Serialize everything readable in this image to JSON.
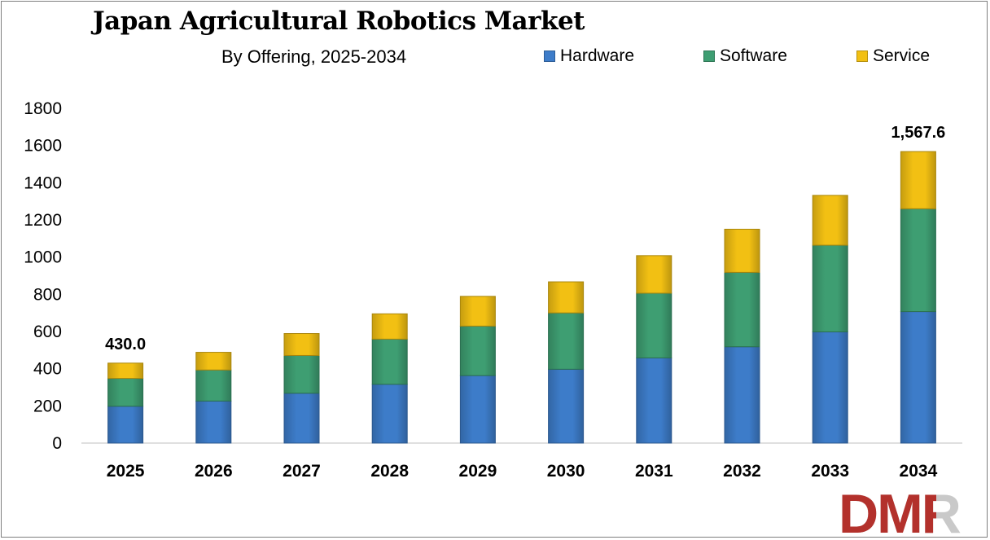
{
  "title": "Japan Agricultural Robotics Market",
  "subtitle": "By Offering, 2025-2034",
  "legend": [
    {
      "label": "Hardware",
      "color": "#3d7cc9"
    },
    {
      "label": "Software",
      "color": "#3e9e72"
    },
    {
      "label": "Service",
      "color": "#f2c013"
    }
  ],
  "logo_text": "DMR",
  "chart_data": {
    "type": "bar",
    "stacked": true,
    "categories": [
      "2025",
      "2026",
      "2027",
      "2028",
      "2029",
      "2030",
      "2031",
      "2032",
      "2033",
      "2034"
    ],
    "series": [
      {
        "name": "Hardware",
        "color": "#3d7cc9",
        "values": [
          198,
          226,
          268,
          316,
          363,
          397,
          458,
          518,
          598,
          707
        ]
      },
      {
        "name": "Software",
        "color": "#3e9e72",
        "values": [
          150,
          167,
          203,
          243,
          266,
          303,
          348,
          400,
          466,
          553
        ]
      },
      {
        "name": "Service",
        "color": "#f2c013",
        "values": [
          82,
          95,
          118,
          136,
          160,
          167,
          202,
          232,
          268,
          307.6
        ]
      }
    ],
    "data_labels": [
      {
        "category": "2025",
        "text": "430.0"
      },
      {
        "category": "2034",
        "text": "1,567.6"
      }
    ],
    "yticks": [
      "0",
      "200",
      "400",
      "600",
      "800",
      "1000",
      "1200",
      "1400",
      "1600",
      "1800"
    ],
    "ylim": [
      0,
      1800
    ],
    "grid": false,
    "legend_position": "top-right"
  }
}
